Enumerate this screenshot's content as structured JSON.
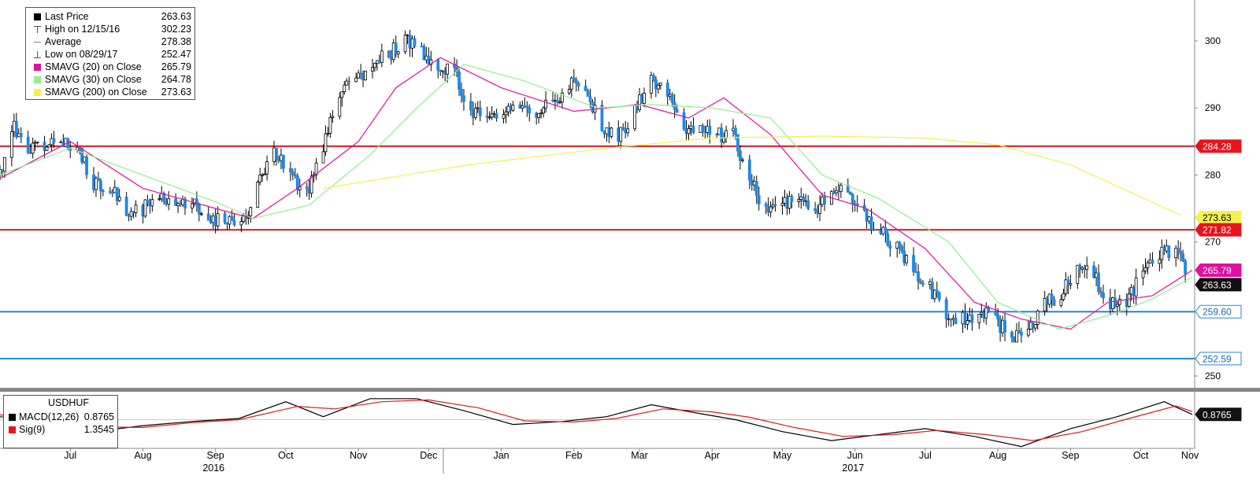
{
  "legend": {
    "items": [
      {
        "label": "Last Price",
        "value": "263.63",
        "color": "#000000",
        "icon": "square-swatch"
      },
      {
        "label": "High on 12/15/16",
        "value": "302.23",
        "color": "#555555",
        "icon": "high-marker-icon"
      },
      {
        "label": "Average",
        "value": "278.38",
        "color": "#888888",
        "icon": "average-line-icon"
      },
      {
        "label": "Low on 08/29/17",
        "value": "252.47",
        "color": "#555555",
        "icon": "low-marker-icon"
      },
      {
        "label": "SMAVG (20) on Close",
        "value": "265.79",
        "color": "#e0119c",
        "icon": "square-swatch"
      },
      {
        "label": "SMAVG (30) on Close",
        "value": "264.78",
        "color": "#8ff08f",
        "icon": "square-swatch"
      },
      {
        "label": "SMAVG (200) on Close",
        "value": "273.63",
        "color": "#f2f24e",
        "icon": "square-swatch"
      }
    ]
  },
  "macd_legend": {
    "title": "USDHUF",
    "items": [
      {
        "label": "MACD(12,26)",
        "value": "0.8765",
        "color": "#000000"
      },
      {
        "label": "Sig(9)",
        "value": "1.3545",
        "color": "#e8141b"
      }
    ]
  },
  "axis": {
    "y_ticks": [
      "300",
      "290",
      "280",
      "270",
      "250"
    ],
    "months": [
      "Jul",
      "Aug",
      "Sep",
      "Oct",
      "Nov",
      "Dec",
      "Jan",
      "Feb",
      "Mar",
      "Apr",
      "May",
      "Jun",
      "Jul",
      "Aug",
      "Sep",
      "Oct",
      "Nov"
    ],
    "years": [
      "2016",
      "2017"
    ]
  },
  "tags": [
    {
      "text": "284.28",
      "bg": "#e8141b",
      "fg": "#ffffff"
    },
    {
      "text": "273.63",
      "bg": "#f2f24e",
      "fg": "#000000"
    },
    {
      "text": "271.82",
      "bg": "#e8141b",
      "fg": "#ffffff"
    },
    {
      "text": "265.79",
      "bg": "#e0119c",
      "fg": "#ffffff"
    },
    {
      "text": "263.63",
      "bg": "#111111",
      "fg": "#ffffff"
    },
    {
      "text": "259.60",
      "bg": "#ffffff",
      "fg": "#1565c0"
    },
    {
      "text": "252.59",
      "bg": "#ffffff",
      "fg": "#1565c0"
    },
    {
      "text": "0.8765",
      "bg": "#111111",
      "fg": "#ffffff"
    }
  ],
  "chart_data": [
    {
      "type": "candlestick",
      "title": "USDHUF",
      "ylim": [
        247,
        306
      ],
      "grid": false,
      "legend_position": "top-left",
      "x_range": [
        "2016-06-15",
        "2017-11-07"
      ],
      "horizontal_lines": [
        {
          "value": 284.28,
          "color": "#e8141b"
        },
        {
          "value": 271.82,
          "color": "#e8141b"
        },
        {
          "value": 259.6,
          "color": "#1e88e5"
        },
        {
          "value": 252.59,
          "color": "#1e88e5"
        }
      ],
      "close_series": {
        "x": [
          "2016-06-15",
          "2016-06-20",
          "2016-06-27",
          "2016-07-04",
          "2016-07-11",
          "2016-07-18",
          "2016-07-25",
          "2016-08-01",
          "2016-08-08",
          "2016-08-15",
          "2016-08-22",
          "2016-08-29",
          "2016-09-05",
          "2016-09-12",
          "2016-09-19",
          "2016-09-26",
          "2016-10-03",
          "2016-10-10",
          "2016-10-17",
          "2016-10-24",
          "2016-10-31",
          "2016-11-07",
          "2016-11-14",
          "2016-11-21",
          "2016-11-28",
          "2016-12-05",
          "2016-12-12",
          "2016-12-19",
          "2016-12-26",
          "2017-01-02",
          "2017-01-09",
          "2017-01-16",
          "2017-01-23",
          "2017-01-30",
          "2017-02-06",
          "2017-02-13",
          "2017-02-20",
          "2017-02-27",
          "2017-03-06",
          "2017-03-13",
          "2017-03-20",
          "2017-03-27",
          "2017-04-03",
          "2017-04-10",
          "2017-04-18",
          "2017-04-24",
          "2017-05-01",
          "2017-05-08",
          "2017-05-15",
          "2017-05-22",
          "2017-05-29",
          "2017-06-05",
          "2017-06-12",
          "2017-06-19",
          "2017-06-26",
          "2017-07-03",
          "2017-07-10",
          "2017-07-17",
          "2017-07-24",
          "2017-07-31",
          "2017-08-07",
          "2017-08-14",
          "2017-08-21",
          "2017-08-28",
          "2017-09-04",
          "2017-09-11",
          "2017-09-18",
          "2017-09-25",
          "2017-10-02",
          "2017-10-09",
          "2017-10-16",
          "2017-10-23",
          "2017-10-30",
          "2017-11-06"
        ],
        "values": [
          280.0,
          287.5,
          284.5,
          283.5,
          285.5,
          284.0,
          279.0,
          278.5,
          274.5,
          275.0,
          277.5,
          275.5,
          276.0,
          273.5,
          273.5,
          272.5,
          278.5,
          284.0,
          280.0,
          277.5,
          284.0,
          292.0,
          294.5,
          296.5,
          298.0,
          300.5,
          298.5,
          296.0,
          295.0,
          290.0,
          288.0,
          288.5,
          290.5,
          289.0,
          291.0,
          293.5,
          292.5,
          287.0,
          285.5,
          290.0,
          294.0,
          292.5,
          287.5,
          286.5,
          286.0,
          286.5,
          279.0,
          275.0,
          275.5,
          276.0,
          274.5,
          277.0,
          277.5,
          274.0,
          271.5,
          269.0,
          266.0,
          263.0,
          259.0,
          258.5,
          259.5,
          258.5,
          255.5,
          257.0,
          260.5,
          262.5,
          266.5,
          265.0,
          260.5,
          260.5,
          266.0,
          268.0,
          268.5,
          263.63
        ]
      },
      "moving_averages": [
        {
          "name": "SMAVG (20) on Close",
          "color": "#e0119c",
          "x": [
            "2016-06-15",
            "2016-07-15",
            "2016-08-15",
            "2016-09-15",
            "2016-10-01",
            "2016-10-20",
            "2016-11-15",
            "2016-12-01",
            "2016-12-20",
            "2017-01-15",
            "2017-02-15",
            "2017-03-15",
            "2017-04-05",
            "2017-04-20",
            "2017-05-10",
            "2017-06-01",
            "2017-06-20",
            "2017-07-15",
            "2017-08-05",
            "2017-08-25",
            "2017-09-15",
            "2017-10-01",
            "2017-10-20",
            "2017-11-06"
          ],
          "values": [
            279.5,
            285.0,
            278.0,
            275.0,
            273.5,
            278.0,
            285.0,
            293.0,
            297.5,
            293.0,
            289.5,
            290.5,
            288.5,
            291.5,
            286.0,
            277.0,
            275.0,
            269.0,
            261.0,
            258.5,
            257.0,
            261.0,
            262.0,
            265.79
          ]
        },
        {
          "name": "SMAVG (30) on Close",
          "color": "#8ff08f",
          "x": [
            "2016-06-15",
            "2016-07-15",
            "2016-08-15",
            "2016-09-15",
            "2016-10-01",
            "2016-10-25",
            "2016-11-20",
            "2016-12-10",
            "2016-12-30",
            "2017-01-25",
            "2017-02-25",
            "2017-03-20",
            "2017-04-15",
            "2017-05-10",
            "2017-06-01",
            "2017-06-25",
            "2017-07-25",
            "2017-08-15",
            "2017-09-10",
            "2017-10-01",
            "2017-10-20",
            "2017-11-06"
          ],
          "values": [
            280.0,
            284.0,
            280.0,
            276.0,
            273.5,
            275.5,
            283.0,
            290.0,
            296.5,
            294.0,
            290.0,
            290.5,
            290.0,
            288.5,
            280.0,
            276.5,
            270.0,
            261.0,
            257.0,
            259.0,
            261.5,
            264.78
          ]
        },
        {
          "name": "SMAVG (200) on Close",
          "color": "#f2f24e",
          "x": [
            "2016-10-31",
            "2017-01-01",
            "2017-03-01",
            "2017-04-15",
            "2017-06-01",
            "2017-07-15",
            "2017-08-15",
            "2017-09-15",
            "2017-11-01"
          ],
          "values": [
            278.0,
            281.5,
            284.0,
            285.5,
            285.8,
            285.5,
            284.5,
            281.5,
            274.0
          ]
        }
      ]
    },
    {
      "type": "line",
      "title": "USDHUF",
      "x_range": [
        "2016-06-15",
        "2017-11-07"
      ],
      "ylim": [
        -4.8,
        4.4
      ],
      "series": [
        {
          "name": "MACD(12,26)",
          "color": "#000000",
          "x": [
            "2016-06-15",
            "2016-07-05",
            "2016-07-25",
            "2016-08-15",
            "2016-09-05",
            "2016-09-25",
            "2016-10-15",
            "2016-10-31",
            "2016-11-20",
            "2016-12-10",
            "2016-12-30",
            "2017-01-20",
            "2017-02-10",
            "2017-03-01",
            "2017-03-20",
            "2017-04-10",
            "2017-04-25",
            "2017-05-15",
            "2017-06-05",
            "2017-06-25",
            "2017-07-15",
            "2017-08-05",
            "2017-08-25",
            "2017-09-15",
            "2017-10-05",
            "2017-10-25",
            "2017-11-06"
          ],
          "values": [
            0.5,
            -0.5,
            -2.0,
            -1.0,
            -0.3,
            0.2,
            3.0,
            0.5,
            3.5,
            3.5,
            1.5,
            -0.8,
            -0.3,
            0.5,
            2.5,
            1.0,
            0.0,
            -2.0,
            -3.5,
            -2.5,
            -1.5,
            -2.8,
            -4.5,
            -1.5,
            0.5,
            3.0,
            0.8765
          ]
        },
        {
          "name": "Sig(9)",
          "color": "#e8141b",
          "x": [
            "2016-06-15",
            "2016-07-05",
            "2016-07-25",
            "2016-08-15",
            "2016-09-05",
            "2016-09-25",
            "2016-10-20",
            "2016-11-05",
            "2016-11-25",
            "2016-12-15",
            "2017-01-05",
            "2017-01-25",
            "2017-02-15",
            "2017-03-05",
            "2017-03-25",
            "2017-04-15",
            "2017-05-01",
            "2017-05-20",
            "2017-06-10",
            "2017-07-01",
            "2017-07-20",
            "2017-08-10",
            "2017-08-30",
            "2017-09-20",
            "2017-10-10",
            "2017-10-30",
            "2017-11-06"
          ],
          "values": [
            0.8,
            0.2,
            -1.2,
            -1.3,
            -0.5,
            0.0,
            2.2,
            1.8,
            3.0,
            3.3,
            2.0,
            -0.2,
            -0.4,
            0.2,
            1.8,
            1.3,
            0.4,
            -1.3,
            -2.8,
            -2.5,
            -1.8,
            -2.5,
            -3.5,
            -2.0,
            0.2,
            2.3,
            1.3545
          ]
        }
      ]
    }
  ]
}
